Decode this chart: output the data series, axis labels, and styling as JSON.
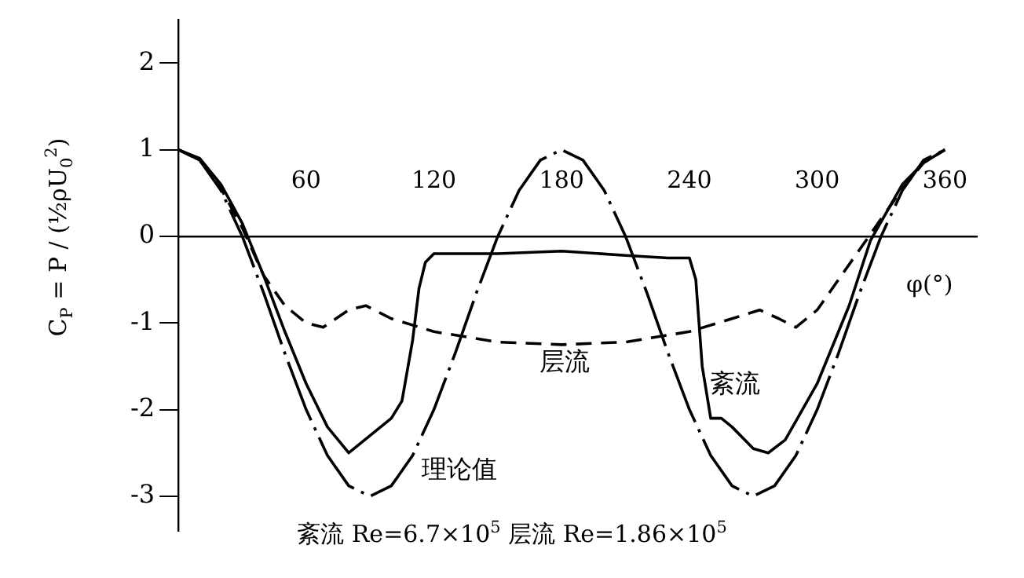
{
  "chart_data": {
    "type": "line",
    "ylabel": "C$_{P}$ = P / (½ρU$_{0}$$^{2}$)",
    "xlabel": "φ(°)",
    "xlim": [
      0,
      375
    ],
    "xticks": [
      60,
      120,
      180,
      240,
      300,
      360
    ],
    "ylim": [
      -3.4,
      2.5
    ],
    "yticks": [
      -3,
      -2,
      -1,
      0,
      1,
      2
    ],
    "grid": false,
    "legend": false,
    "marker": "none",
    "series": [
      {
        "name": "层流",
        "color": "#000000",
        "line_style": "dashed",
        "x": [
          0,
          10,
          20,
          30,
          40,
          50,
          60,
          68,
          80,
          88,
          100,
          120,
          150,
          180,
          210,
          240,
          260,
          273,
          282,
          290,
          300,
          310,
          320,
          330,
          340,
          350,
          360
        ],
        "values": [
          1,
          0.88,
          0.55,
          0.1,
          -0.45,
          -0.8,
          -1,
          -1.05,
          -0.85,
          -0.8,
          -0.95,
          -1.1,
          -1.22,
          -1.25,
          -1.22,
          -1.1,
          -0.95,
          -0.85,
          -0.95,
          -1.05,
          -0.85,
          -0.5,
          -0.15,
          0.2,
          0.55,
          0.85,
          1
        ]
      },
      {
        "name": "紊流",
        "color": "#000000",
        "line_style": "solid",
        "x": [
          0,
          10,
          20,
          30,
          40,
          50,
          60,
          70,
          80,
          90,
          95,
          100,
          105,
          110,
          113,
          116,
          120,
          130,
          150,
          180,
          210,
          230,
          240,
          243,
          246,
          250,
          255,
          260,
          270,
          277,
          285,
          300,
          315,
          325,
          340,
          350,
          360
        ],
        "values": [
          1,
          0.9,
          0.6,
          0.15,
          -0.45,
          -1.1,
          -1.7,
          -2.2,
          -2.5,
          -2.3,
          -2.2,
          -2.1,
          -1.9,
          -1.2,
          -0.6,
          -0.3,
          -0.2,
          -0.2,
          -0.2,
          -0.17,
          -0.22,
          -0.25,
          -0.25,
          -0.5,
          -1.5,
          -2.1,
          -2.1,
          -2.2,
          -2.45,
          -2.5,
          -2.35,
          -1.7,
          -0.8,
          -0.05,
          0.6,
          0.85,
          1
        ]
      },
      {
        "name": "理论值",
        "color": "#000000",
        "line_style": "dashdot",
        "x": [
          0,
          10,
          20,
          30,
          40,
          50,
          60,
          70,
          80,
          90,
          100,
          110,
          120,
          130,
          140,
          150,
          160,
          170,
          180,
          190,
          200,
          210,
          220,
          230,
          240,
          250,
          260,
          270,
          280,
          290,
          300,
          310,
          320,
          330,
          340,
          350,
          360
        ],
        "values": [
          1,
          0.88,
          0.53,
          0,
          -0.65,
          -1.35,
          -2,
          -2.53,
          -2.88,
          -3,
          -2.88,
          -2.53,
          -2,
          -1.35,
          -0.65,
          0,
          0.53,
          0.88,
          1,
          0.88,
          0.53,
          0,
          -0.65,
          -1.35,
          -2,
          -2.53,
          -2.88,
          -3,
          -2.88,
          -2.53,
          -2,
          -1.35,
          -0.65,
          0,
          0.53,
          0.88,
          1
        ]
      }
    ],
    "annotations": [
      "紊流 Re=6.7×10$^{5}$    层流 Re=1.86×10$^{5}$"
    ]
  }
}
